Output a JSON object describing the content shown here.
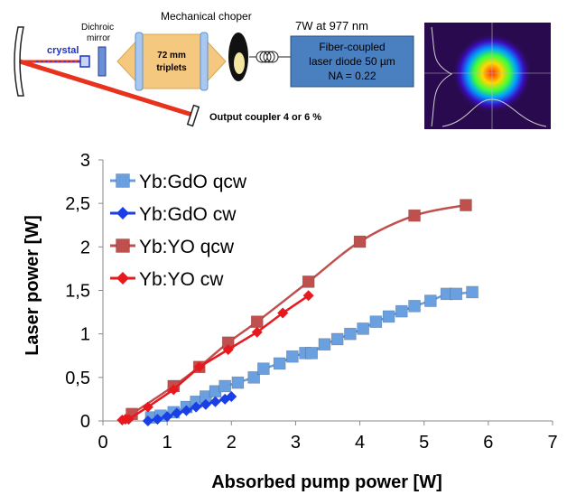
{
  "setup": {
    "crystal_label": "crystal",
    "dichroic_label_line1": "Dichroic",
    "dichroic_label_line2": "mirror",
    "triplets_line1": "72 mm",
    "triplets_line2": "triplets",
    "chopper_label": "Mechanical choper",
    "pump_spec": "7W at 977 nm",
    "diode_line1": "Fiber-coupled",
    "diode_line2": "laser diode 50 µm",
    "diode_line3": "NA = 0.22",
    "output_coupler": "Output coupler 4 or 6 %",
    "colors": {
      "beam": "#e8321e",
      "lens": "#f5c87f",
      "diode_box": "#4a7fc0"
    }
  },
  "chart_data": {
    "type": "line",
    "xlabel": "Absorbed pump power [W]",
    "ylabel": "Laser power [W]",
    "xlim": [
      0,
      7
    ],
    "ylim": [
      0,
      3
    ],
    "xticks": [
      0,
      1,
      2,
      3,
      4,
      5,
      6,
      7
    ],
    "xtick_labels": [
      "0",
      "1",
      "2",
      "3",
      "4",
      "5",
      "6",
      "7"
    ],
    "yticks": [
      0,
      0.5,
      1,
      1.5,
      2,
      2.5,
      3
    ],
    "ytick_labels": [
      "0",
      "0,5",
      "1",
      "1,5",
      "2",
      "2,5",
      "3"
    ],
    "grid": false,
    "legend_position": "top-left",
    "series": [
      {
        "name": "Yb:GdO qcw",
        "color": "#6a9fe0",
        "marker": "square",
        "smooth": false,
        "x": [
          0.75,
          0.9,
          1.1,
          1.3,
          1.45,
          1.6,
          1.75,
          1.9,
          2.1,
          2.35,
          2.5,
          2.75,
          2.95,
          3.15,
          3.25,
          3.45,
          3.65,
          3.85,
          4.05,
          4.25,
          4.45,
          4.65,
          4.85,
          5.1,
          5.35,
          5.5,
          5.75
        ],
        "y": [
          0.04,
          0.06,
          0.1,
          0.16,
          0.22,
          0.28,
          0.34,
          0.4,
          0.44,
          0.5,
          0.6,
          0.66,
          0.74,
          0.78,
          0.78,
          0.88,
          0.94,
          1.0,
          1.06,
          1.14,
          1.2,
          1.26,
          1.32,
          1.38,
          1.46,
          1.46,
          1.48
        ]
      },
      {
        "name": "Yb:GdO cw",
        "color": "#1a3ee8",
        "marker": "diamond",
        "smooth": false,
        "x": [
          0.7,
          0.85,
          1.0,
          1.15,
          1.3,
          1.45,
          1.6,
          1.75,
          1.9,
          2.0
        ],
        "y": [
          0.0,
          0.02,
          0.05,
          0.09,
          0.12,
          0.16,
          0.19,
          0.22,
          0.25,
          0.28
        ]
      },
      {
        "name": "Yb:YO qcw",
        "color": "#c0504d",
        "marker": "square",
        "smooth": true,
        "x": [
          0.45,
          1.1,
          1.5,
          1.95,
          2.4,
          3.2,
          4.0,
          4.85,
          5.65
        ],
        "y": [
          0.08,
          0.4,
          0.62,
          0.9,
          1.14,
          1.6,
          2.06,
          2.36,
          2.48
        ]
      },
      {
        "name": "Yb:YO cw",
        "color": "#e8191e",
        "marker": "diamond",
        "smooth": false,
        "x": [
          0.3,
          0.35,
          0.4,
          0.7,
          1.1,
          1.5,
          1.95,
          2.4,
          2.8,
          3.2
        ],
        "y": [
          0.01,
          0.02,
          0.02,
          0.16,
          0.36,
          0.62,
          0.82,
          1.02,
          1.24,
          1.44
        ]
      }
    ]
  }
}
